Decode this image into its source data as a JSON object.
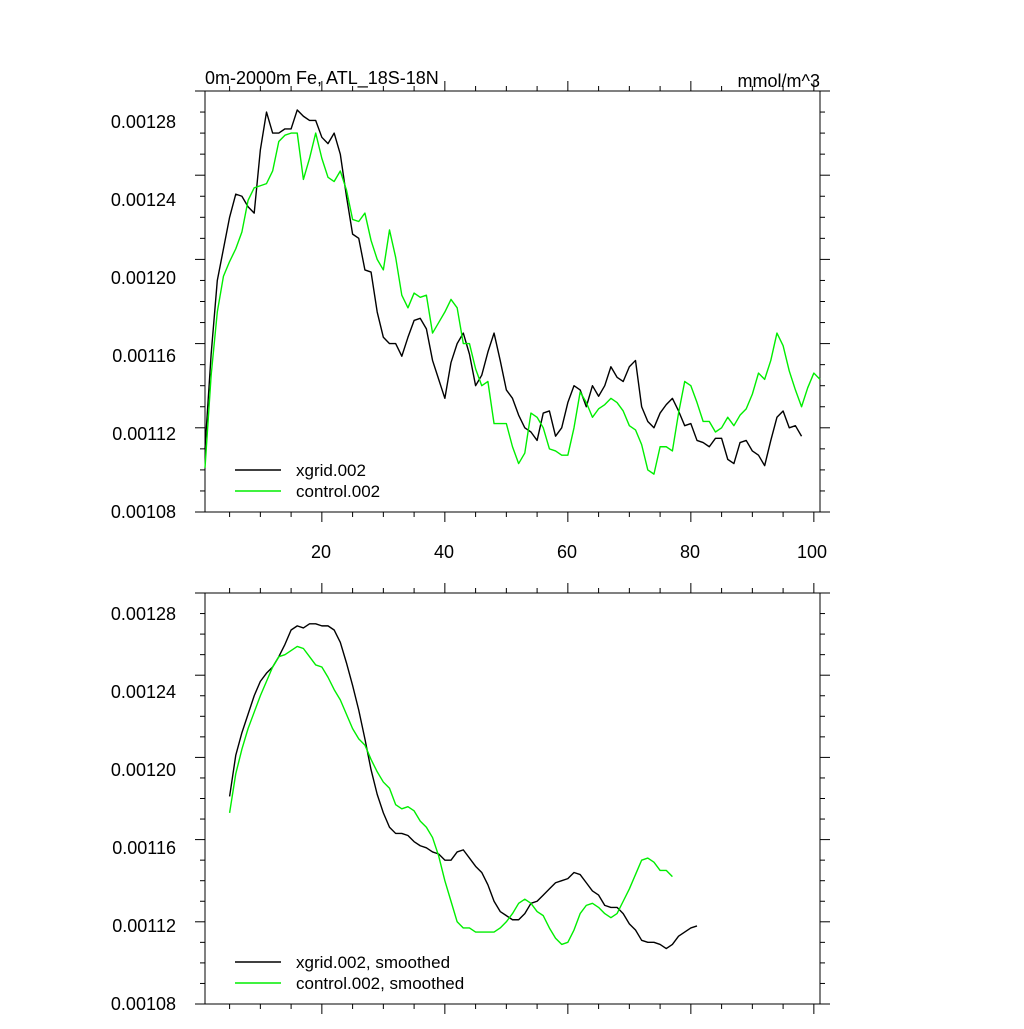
{
  "colors": {
    "xgrid": "#000000",
    "control": "#00ee00"
  },
  "chart_data": [
    {
      "type": "line",
      "title": "0m-2000m Fe, ATL_18S-18N",
      "subtitle": "mmol/m^3",
      "xlabel": "",
      "ylabel": "",
      "xlim": [
        1,
        101
      ],
      "ylim": [
        0.00108,
        0.00128
      ],
      "x_ticks": [
        20,
        40,
        60,
        80,
        100
      ],
      "y_ticks": [
        "0.00108",
        "0.00112",
        "0.00116",
        "0.00120",
        "0.00124",
        "0.00128"
      ],
      "x_start": 1,
      "legend_position": "bottom-left",
      "series": [
        {
          "name": "xgrid.002",
          "color": "#000000",
          "values": [
            0.00111,
            0.001155,
            0.00119,
            0.001205,
            0.00122,
            0.001231,
            0.00123,
            0.001225,
            0.001222,
            0.001252,
            0.00127,
            0.00126,
            0.00126,
            0.001262,
            0.001262,
            0.001271,
            0.001268,
            0.001266,
            0.001266,
            0.001258,
            0.001255,
            0.00126,
            0.00125,
            0.00123,
            0.001212,
            0.00121,
            0.001195,
            0.001194,
            0.001175,
            0.001163,
            0.00116,
            0.00116,
            0.001154,
            0.001163,
            0.001171,
            0.001172,
            0.001167,
            0.001152,
            0.001143,
            0.001134,
            0.001151,
            0.00116,
            0.001165,
            0.001155,
            0.00114,
            0.001145,
            0.001156,
            0.001165,
            0.001152,
            0.001138,
            0.001134,
            0.001126,
            0.00112,
            0.001118,
            0.001114,
            0.001127,
            0.001128,
            0.001116,
            0.00112,
            0.001132,
            0.00114,
            0.001138,
            0.00113,
            0.00114,
            0.001135,
            0.00114,
            0.001149,
            0.001144,
            0.001142,
            0.001149,
            0.001152,
            0.00113,
            0.001123,
            0.00112,
            0.001127,
            0.001131,
            0.001134,
            0.001128,
            0.001121,
            0.001122,
            0.001114,
            0.001113,
            0.001111,
            0.001115,
            0.001115,
            0.001105,
            0.001103,
            0.001113,
            0.001114,
            0.001109,
            0.001107,
            0.001102,
            0.001114,
            0.001125,
            0.001128,
            0.00112,
            0.001121,
            0.001116
          ]
        },
        {
          "name": "control.002",
          "color": "#00ee00",
          "values": [
            0.001101,
            0.001145,
            0.001175,
            0.001192,
            0.001199,
            0.001205,
            0.001213,
            0.001228,
            0.001234,
            0.001235,
            0.001236,
            0.001242,
            0.001256,
            0.001259,
            0.00126,
            0.00126,
            0.001238,
            0.001248,
            0.00126,
            0.001248,
            0.001239,
            0.001237,
            0.001242,
            0.001233,
            0.001219,
            0.001218,
            0.001222,
            0.001209,
            0.0012,
            0.001195,
            0.001214,
            0.001201,
            0.001183,
            0.001177,
            0.001184,
            0.001182,
            0.001183,
            0.001165,
            0.00117,
            0.001175,
            0.001181,
            0.001177,
            0.00116,
            0.00116,
            0.001148,
            0.00114,
            0.001142,
            0.001122,
            0.001122,
            0.001122,
            0.001111,
            0.001103,
            0.001108,
            0.001127,
            0.001125,
            0.00112,
            0.00111,
            0.001109,
            0.001107,
            0.001107,
            0.00112,
            0.001137,
            0.001132,
            0.001125,
            0.001129,
            0.001131,
            0.001134,
            0.001132,
            0.001128,
            0.001121,
            0.001119,
            0.001112,
            0.0011,
            0.001098,
            0.001111,
            0.001111,
            0.001109,
            0.001127,
            0.001142,
            0.00114,
            0.001132,
            0.001123,
            0.001123,
            0.001118,
            0.00112,
            0.001125,
            0.001121,
            0.001126,
            0.001129,
            0.001136,
            0.001146,
            0.001143,
            0.001152,
            0.001165,
            0.001159,
            0.001147,
            0.001138,
            0.00113,
            0.001139,
            0.001146,
            0.001143
          ]
        }
      ]
    },
    {
      "type": "line",
      "title": "",
      "xlabel": "",
      "ylabel": "",
      "xlim": [
        1,
        101
      ],
      "ylim": [
        0.00108,
        0.00128
      ],
      "x_ticks": [
        20,
        40,
        60,
        80,
        100
      ],
      "y_ticks": [
        "0.00108",
        "0.00112",
        "0.00116",
        "0.00120",
        "0.00124",
        "0.00128"
      ],
      "x_start": 5,
      "legend_position": "bottom-left",
      "series": [
        {
          "name": "xgrid.002, smoothed",
          "color": "#000000",
          "values": [
            0.001181,
            0.001201,
            0.001212,
            0.001221,
            0.00123,
            0.001237,
            0.001241,
            0.001244,
            0.001249,
            0.001255,
            0.001262,
            0.001264,
            0.001263,
            0.001265,
            0.001265,
            0.001264,
            0.001264,
            0.001262,
            0.001256,
            0.001246,
            0.001235,
            0.001223,
            0.001209,
            0.001194,
            0.001182,
            0.001173,
            0.001166,
            0.001163,
            0.001163,
            0.001162,
            0.001159,
            0.001157,
            0.001156,
            0.001154,
            0.001153,
            0.00115,
            0.00115,
            0.001154,
            0.001155,
            0.001151,
            0.001147,
            0.001144,
            0.001138,
            0.00113,
            0.001125,
            0.001123,
            0.001121,
            0.001121,
            0.001124,
            0.001129,
            0.00113,
            0.001133,
            0.001136,
            0.001139,
            0.00114,
            0.001141,
            0.001144,
            0.001143,
            0.001139,
            0.001135,
            0.001133,
            0.001128,
            0.001127,
            0.001127,
            0.001124,
            0.001119,
            0.001116,
            0.001111,
            0.00111,
            0.00111,
            0.001109,
            0.001107,
            0.001109,
            0.001113,
            0.001115,
            0.001117,
            0.001118
          ]
        },
        {
          "name": "control.002, smoothed",
          "color": "#00ee00",
          "values": [
            0.001173,
            0.001192,
            0.001204,
            0.001214,
            0.001222,
            0.00123,
            0.001237,
            0.001244,
            0.001249,
            0.00125,
            0.001252,
            0.001254,
            0.001253,
            0.001249,
            0.001245,
            0.001244,
            0.001239,
            0.001233,
            0.001228,
            0.001221,
            0.001214,
            0.001209,
            0.001206,
            0.001199,
            0.001193,
            0.001188,
            0.001185,
            0.001177,
            0.001175,
            0.001176,
            0.001174,
            0.001169,
            0.001166,
            0.001161,
            0.001152,
            0.00114,
            0.00113,
            0.00112,
            0.001117,
            0.001117,
            0.001115,
            0.001115,
            0.001115,
            0.001115,
            0.001117,
            0.00112,
            0.001124,
            0.001129,
            0.001131,
            0.001129,
            0.001125,
            0.001123,
            0.001117,
            0.001112,
            0.001109,
            0.00111,
            0.001116,
            0.001124,
            0.001128,
            0.001129,
            0.001127,
            0.001124,
            0.001122,
            0.001124,
            0.00113,
            0.001136,
            0.001143,
            0.00115,
            0.001151,
            0.001149,
            0.001145,
            0.001145,
            0.001142
          ]
        }
      ]
    }
  ]
}
